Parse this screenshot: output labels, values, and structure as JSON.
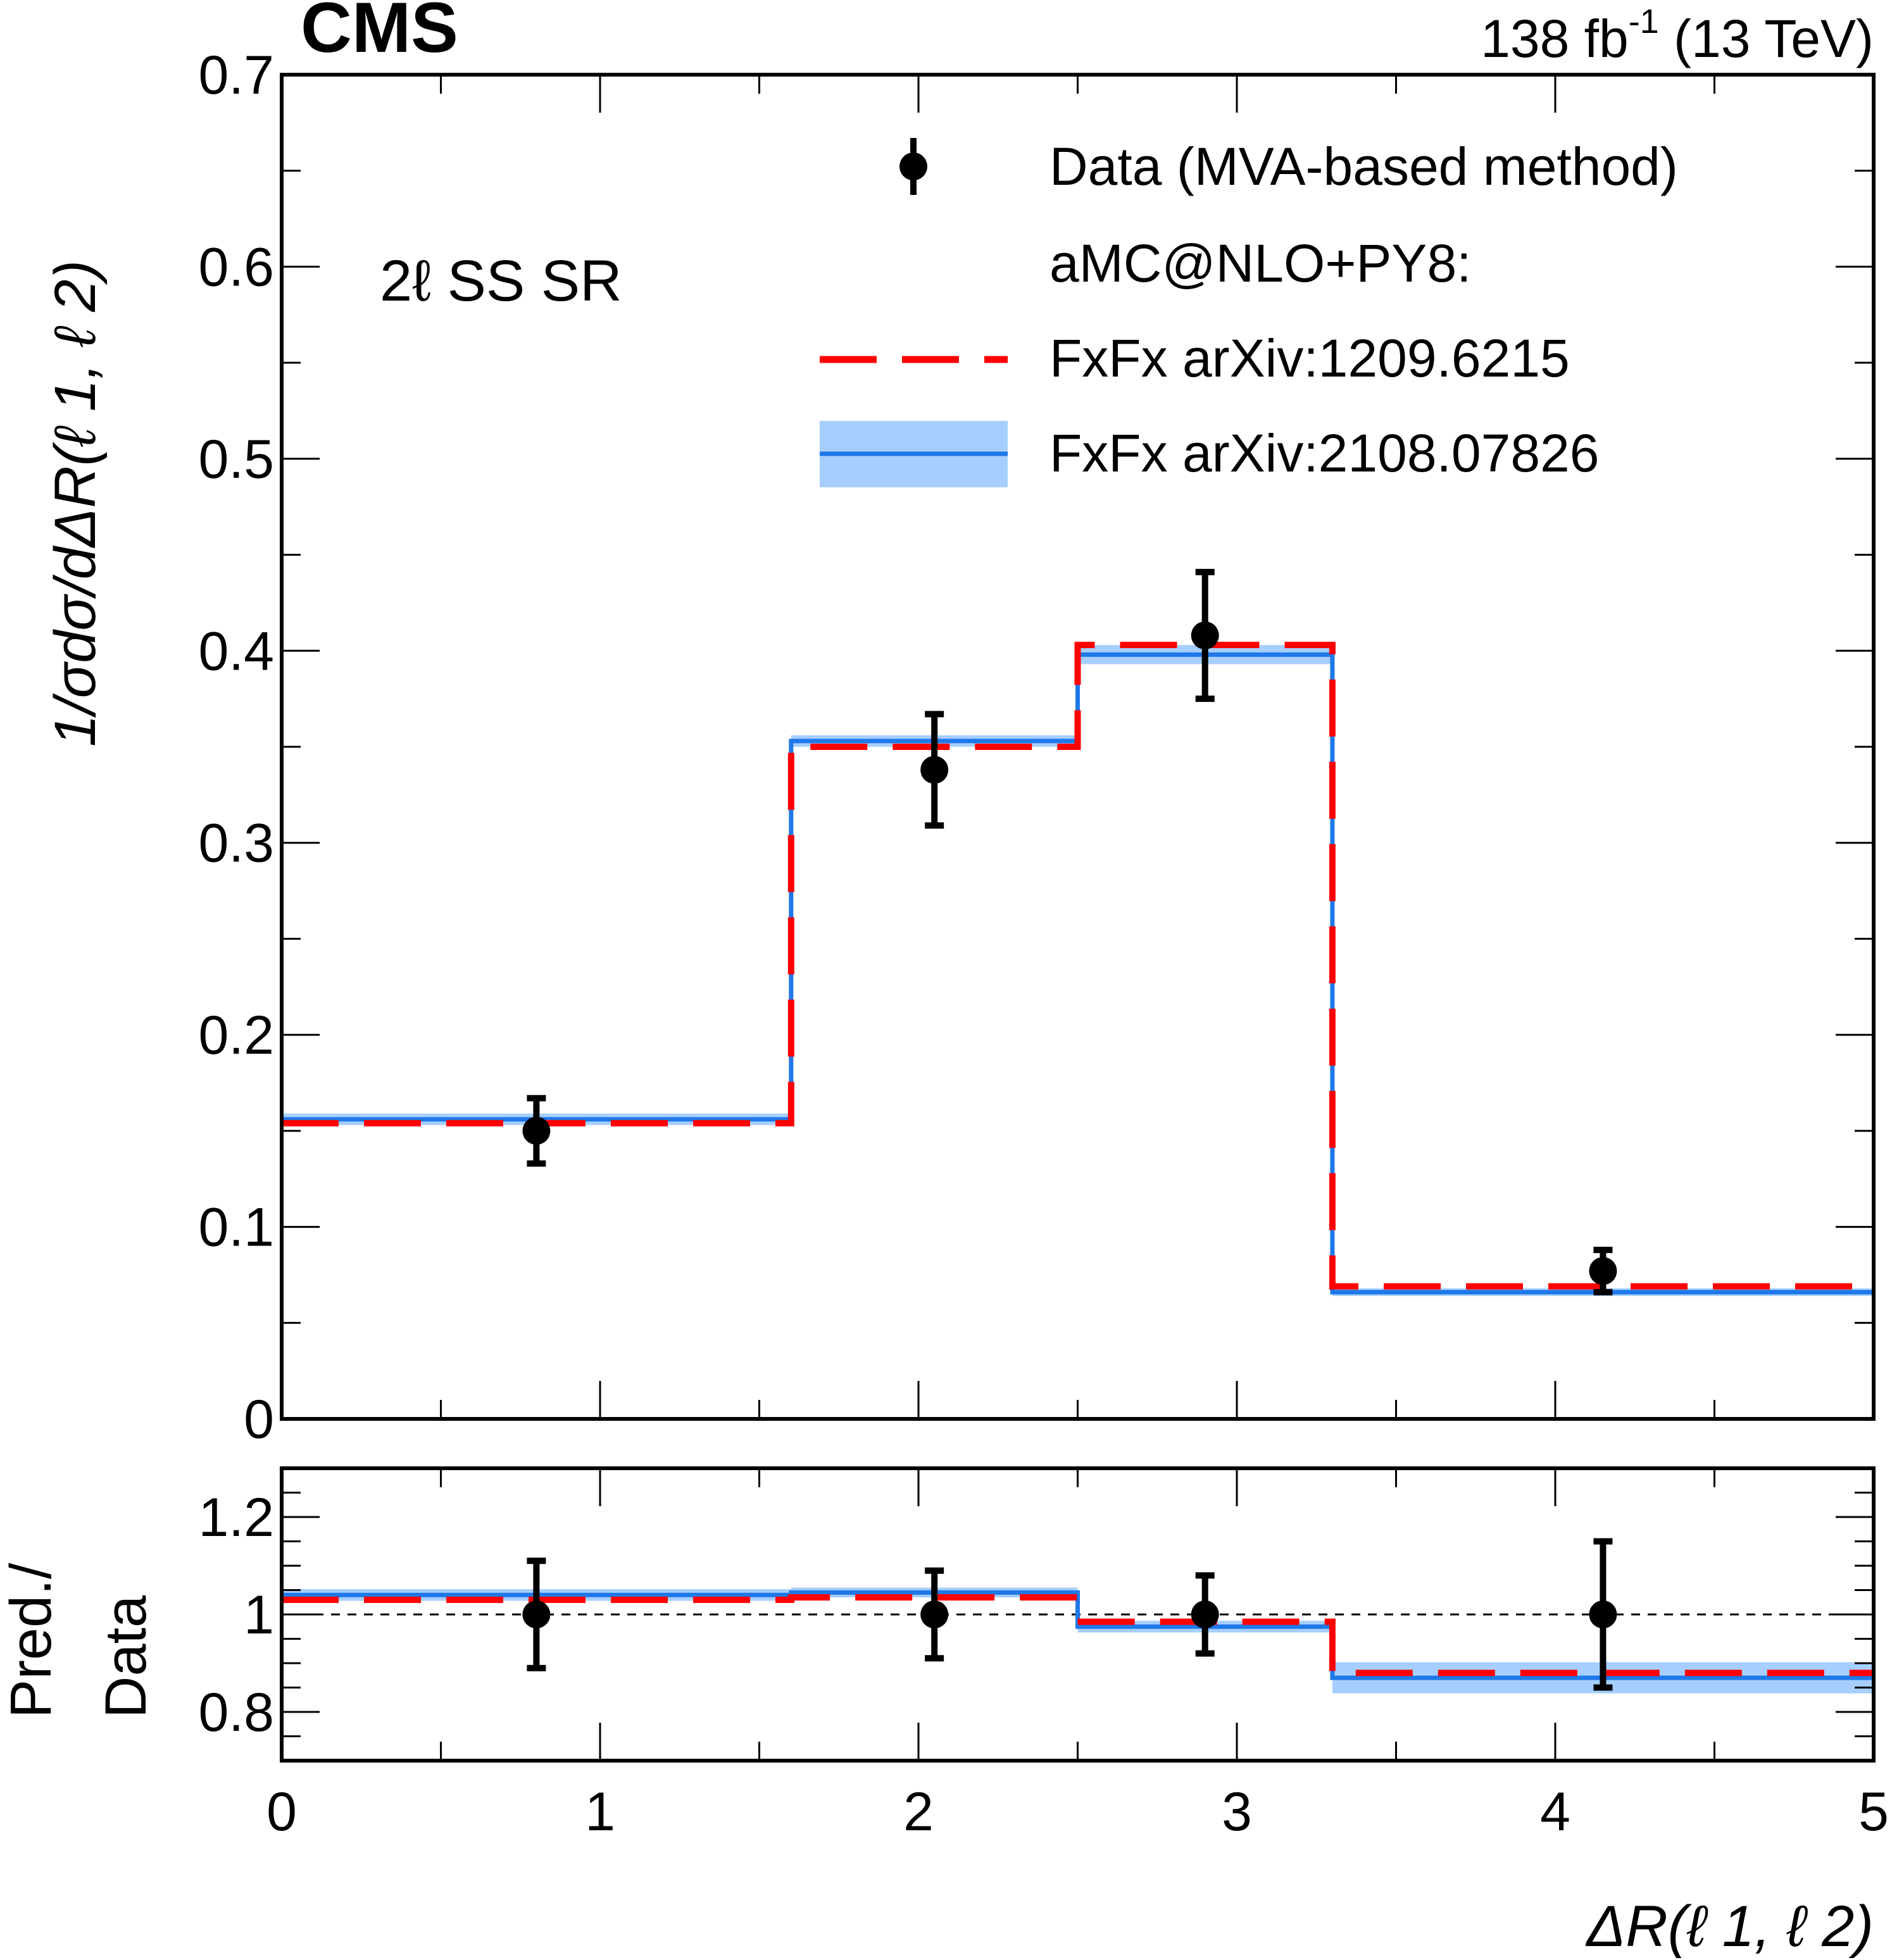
{
  "header": {
    "experiment": "CMS",
    "lumi_base": "138 fb",
    "lumi_exp": "-1",
    "lumi_tail": " (13 TeV)"
  },
  "chart_data": {
    "type": "histogram-with-ratio",
    "region_label": "2ℓ SS SR",
    "xlabel": "ΔR(ℓ 1, ℓ 2)",
    "xlim": [
      0,
      5
    ],
    "x_ticks": [
      "0",
      "1",
      "2",
      "3",
      "4",
      "5"
    ],
    "bin_edges": [
      0,
      1.6,
      2.5,
      3.3,
      5.0
    ],
    "main_panel": {
      "ylabel": "1/σdσ/dΔR(ℓ 1, ℓ 2)",
      "ylim": [
        0,
        0.7
      ],
      "y_ticks": [
        "0",
        "0.1",
        "0.2",
        "0.3",
        "0.4",
        "0.5",
        "0.6",
        "0.7"
      ],
      "data": {
        "name": "Data (MVA-based method)",
        "x": [
          0.8,
          2.05,
          2.9,
          4.15
        ],
        "y": [
          0.15,
          0.338,
          0.408,
          0.077
        ],
        "y_err": [
          0.017,
          0.029,
          0.033,
          0.011
        ],
        "color": "#000000"
      },
      "series": [
        {
          "name": "FxFx arXiv:1209.6215",
          "style": "dashed",
          "color": "#ff0000",
          "values": [
            0.154,
            0.35,
            0.403,
            0.069
          ]
        },
        {
          "name": "FxFx arXiv:2108.07826",
          "style": "solid",
          "color": "#1f78e8",
          "band_color": "#a6cfff",
          "values": [
            0.156,
            0.353,
            0.398,
            0.066
          ],
          "band_err": [
            0.003,
            0.003,
            0.005,
            0.002
          ]
        }
      ]
    },
    "ratio_panel": {
      "ylabel_line1": "Pred./",
      "ylabel_line2": "Data",
      "ylim": [
        0.7,
        1.3
      ],
      "y_ticks": [
        "0.8",
        "1",
        "1.2"
      ],
      "reference_line": 1.0,
      "data": {
        "x": [
          0.8,
          2.05,
          2.9,
          4.15
        ],
        "y": [
          1.0,
          1.0,
          1.0,
          1.0
        ],
        "y_err": [
          0.11,
          0.09,
          0.08,
          0.15
        ]
      },
      "series": [
        {
          "name": "FxFx arXiv:1209.6215",
          "style": "dashed",
          "color": "#ff0000",
          "values": [
            1.03,
            1.035,
            0.985,
            0.88
          ]
        },
        {
          "name": "FxFx arXiv:2108.07826",
          "style": "solid",
          "color": "#1f78e8",
          "band_color": "#a6cfff",
          "values": [
            1.04,
            1.045,
            0.975,
            0.87
          ],
          "band_err": [
            0.012,
            0.01,
            0.012,
            0.032
          ]
        }
      ]
    },
    "legend": {
      "placement": "top-right",
      "data_label": "Data (MVA-based method)",
      "group_label": "aMC@NLO+PY8:",
      "entry_a": "FxFx arXiv:1209.6215",
      "entry_b": "FxFx arXiv:2108.07826"
    }
  }
}
